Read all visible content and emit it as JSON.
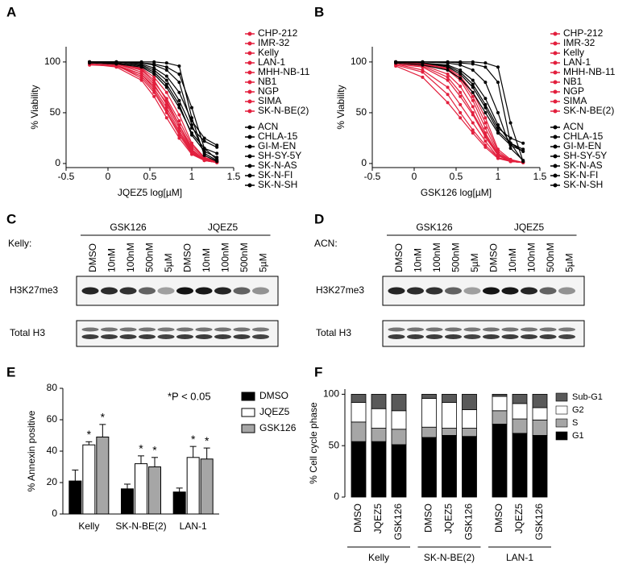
{
  "panel_labels": [
    "A",
    "B",
    "C",
    "D",
    "E",
    "F"
  ],
  "chart_data": [
    {
      "type": "line",
      "xlabel": "JQEZ5 log[µM]",
      "ylabel": "% Viability",
      "x": [
        -0.22,
        0.1,
        0.4,
        0.55,
        0.7,
        0.85,
        1.0,
        1.15,
        1.3
      ],
      "xlim": [
        -0.5,
        1.5
      ],
      "xticks": [
        -0.5,
        0,
        0.5,
        1,
        1.5
      ],
      "ylim": [
        -4,
        115
      ],
      "yticks": [
        0,
        50,
        100
      ],
      "series": [
        {
          "name": "CHP-212",
          "color": "#e21f3d",
          "values": [
            100,
            99,
            93,
            82,
            62,
            38,
            14,
            4,
            1
          ]
        },
        {
          "name": "IMR-32",
          "color": "#e21f3d",
          "values": [
            99,
            97,
            88,
            74,
            55,
            32,
            12,
            3,
            1
          ]
        },
        {
          "name": "Kelly",
          "color": "#e21f3d",
          "values": [
            98,
            95,
            82,
            66,
            45,
            25,
            9,
            3,
            1
          ]
        },
        {
          "name": "LAN-1",
          "color": "#e21f3d",
          "values": [
            100,
            98,
            90,
            78,
            58,
            35,
            13,
            4,
            2
          ]
        },
        {
          "name": "MHH-NB-11",
          "color": "#e21f3d",
          "values": [
            97,
            96,
            86,
            72,
            52,
            30,
            11,
            3,
            1
          ]
        },
        {
          "name": "NB1",
          "color": "#e21f3d",
          "values": [
            99,
            98,
            92,
            80,
            64,
            42,
            18,
            6,
            2
          ]
        },
        {
          "name": "NGP",
          "color": "#e21f3d",
          "values": [
            100,
            97,
            84,
            70,
            50,
            28,
            10,
            3,
            1
          ]
        },
        {
          "name": "SIMA",
          "color": "#e21f3d",
          "values": [
            98,
            96,
            88,
            76,
            60,
            38,
            16,
            5,
            2
          ]
        },
        {
          "name": "SK-N-BE(2)",
          "color": "#e21f3d",
          "values": [
            99,
            98,
            94,
            85,
            70,
            48,
            20,
            6,
            2
          ]
        },
        {
          "name": "ACN",
          "color": "#000000",
          "values": [
            100,
            100,
            100,
            100,
            99,
            96,
            45,
            8,
            2
          ]
        },
        {
          "name": "CHLA-15",
          "color": "#000000",
          "values": [
            100,
            99,
            97,
            92,
            82,
            62,
            35,
            22,
            16
          ]
        },
        {
          "name": "GI-M-EN",
          "color": "#000000",
          "values": [
            100,
            100,
            99,
            97,
            92,
            80,
            38,
            10,
            3
          ]
        },
        {
          "name": "SH-SY-5Y",
          "color": "#000000",
          "values": [
            99,
            98,
            95,
            88,
            75,
            55,
            30,
            15,
            10
          ]
        },
        {
          "name": "SK-N-AS",
          "color": "#000000",
          "values": [
            100,
            99,
            96,
            90,
            78,
            58,
            28,
            12,
            6
          ]
        },
        {
          "name": "SK-N-FI",
          "color": "#000000",
          "values": [
            100,
            100,
            99,
            98,
            95,
            88,
            55,
            15,
            4
          ]
        },
        {
          "name": "SK-N-SH",
          "color": "#000000",
          "values": [
            100,
            100,
            98,
            94,
            86,
            70,
            42,
            25,
            18
          ]
        }
      ]
    },
    {
      "type": "line",
      "xlabel": "GSK126 log[µM]",
      "ylabel": "% Viability",
      "x": [
        -0.22,
        0.1,
        0.4,
        0.55,
        0.7,
        0.85,
        1.0,
        1.15,
        1.3
      ],
      "xlim": [
        -0.5,
        1.5
      ],
      "xticks": [
        -0.5,
        0,
        0.5,
        1,
        1.5
      ],
      "ylim": [
        -4,
        115
      ],
      "yticks": [
        0,
        50,
        100
      ],
      "series": [
        {
          "name": "CHP-212",
          "color": "#e21f3d",
          "values": [
            100,
            98,
            92,
            82,
            62,
            35,
            10,
            3,
            1
          ]
        },
        {
          "name": "IMR-32",
          "color": "#e21f3d",
          "values": [
            99,
            96,
            85,
            70,
            50,
            28,
            8,
            2,
            1
          ]
        },
        {
          "name": "Kelly",
          "color": "#e21f3d",
          "values": [
            98,
            92,
            75,
            58,
            40,
            22,
            6,
            2,
            1
          ]
        },
        {
          "name": "LAN-1",
          "color": "#e21f3d",
          "values": [
            97,
            90,
            68,
            50,
            33,
            18,
            6,
            2,
            1
          ]
        },
        {
          "name": "MHH-NB-11",
          "color": "#e21f3d",
          "values": [
            100,
            97,
            88,
            76,
            56,
            30,
            9,
            2,
            1
          ]
        },
        {
          "name": "NB1",
          "color": "#e21f3d",
          "values": [
            99,
            98,
            94,
            86,
            70,
            45,
            14,
            4,
            1
          ]
        },
        {
          "name": "NGP",
          "color": "#e21f3d",
          "values": [
            96,
            85,
            60,
            45,
            30,
            16,
            5,
            2,
            1
          ]
        },
        {
          "name": "SIMA",
          "color": "#e21f3d",
          "values": [
            98,
            95,
            82,
            66,
            48,
            26,
            8,
            2,
            1
          ]
        },
        {
          "name": "SK-N-BE(2)",
          "color": "#e21f3d",
          "values": [
            100,
            99,
            93,
            84,
            66,
            40,
            12,
            3,
            1
          ]
        },
        {
          "name": "ACN",
          "color": "#000000",
          "values": [
            100,
            100,
            100,
            100,
            100,
            99,
            95,
            40,
            2
          ]
        },
        {
          "name": "CHLA-15",
          "color": "#000000",
          "values": [
            100,
            99,
            96,
            90,
            78,
            58,
            35,
            25,
            20
          ]
        },
        {
          "name": "GI-M-EN",
          "color": "#000000",
          "values": [
            100,
            100,
            99,
            97,
            92,
            80,
            50,
            15,
            3
          ]
        },
        {
          "name": "SH-SY-5Y",
          "color": "#000000",
          "values": [
            99,
            97,
            92,
            84,
            70,
            50,
            30,
            18,
            12
          ]
        },
        {
          "name": "SK-N-AS",
          "color": "#000000",
          "values": [
            100,
            99,
            97,
            92,
            82,
            64,
            38,
            20,
            12
          ]
        },
        {
          "name": "SK-N-FI",
          "color": "#000000",
          "values": [
            100,
            100,
            100,
            99,
            98,
            95,
            80,
            20,
            2
          ]
        },
        {
          "name": "SK-N-SH",
          "color": "#000000",
          "values": [
            100,
            99,
            95,
            88,
            75,
            55,
            32,
            20,
            14
          ]
        }
      ]
    },
    {
      "type": "bar",
      "ylabel": "% Annexin positive",
      "annotation": "*P < 0.05",
      "categories": [
        "Kelly",
        "SK-N-BE(2)",
        "LAN-1"
      ],
      "ylim": [
        0,
        80
      ],
      "yticks": [
        0,
        20,
        40,
        60,
        80
      ],
      "series": [
        {
          "name": "DMSO",
          "color": "#000000",
          "values": [
            21,
            16,
            14
          ],
          "errors": [
            7,
            3,
            2.5
          ]
        },
        {
          "name": "JQEZ5",
          "color": "#ffffff",
          "values": [
            44,
            32,
            36
          ],
          "errors": [
            2,
            5,
            7
          ],
          "stars": [
            "*",
            "*",
            "*"
          ]
        },
        {
          "name": "GSK126",
          "color": "#a6a6a6",
          "values": [
            49,
            30,
            35
          ],
          "errors": [
            8,
            6,
            7
          ],
          "stars": [
            "*",
            "*",
            "*"
          ]
        }
      ]
    },
    {
      "type": "stacked_bar",
      "ylabel": "% Cell cycle phase",
      "categories": [
        "DMSO",
        "JQEZ5",
        "GSK126",
        "DMSO",
        "JQEZ5",
        "GSK126",
        "DMSO",
        "JQEZ5",
        "GSK126"
      ],
      "groups": [
        "Kelly",
        "SK-N-BE(2)",
        "LAN-1"
      ],
      "ylim": [
        0,
        105
      ],
      "yticks": [
        0,
        50,
        100
      ],
      "series": [
        {
          "name": "G1",
          "color": "#000000",
          "values": [
            54,
            54,
            51,
            58,
            60,
            59,
            71,
            62,
            60
          ]
        },
        {
          "name": "S",
          "color": "#a6a6a6",
          "values": [
            19,
            13,
            15,
            10,
            7,
            8,
            13,
            14,
            15
          ]
        },
        {
          "name": "G2",
          "color": "#ffffff",
          "values": [
            19,
            19,
            18,
            28,
            25,
            18,
            14,
            15,
            12
          ]
        },
        {
          "name": "Sub-G1",
          "color": "#595959",
          "values": [
            8,
            14,
            16,
            4,
            8,
            15,
            2,
            9,
            13
          ]
        }
      ]
    }
  ],
  "blots": [
    {
      "cell_line": "Kelly:",
      "groups": [
        "GSK126",
        "JQEZ5"
      ],
      "lanes": [
        "DMSO",
        "10nM",
        "100nM",
        "500nM",
        "5µM"
      ],
      "rows": [
        "H3K27me3",
        "Total H3"
      ]
    },
    {
      "cell_line": "ACN:",
      "groups": [
        "GSK126",
        "JQEZ5"
      ],
      "lanes": [
        "DMSO",
        "10nM",
        "100nM",
        "500nM",
        "5µM"
      ],
      "rows": [
        "H3K27me3",
        "Total H3"
      ]
    }
  ]
}
